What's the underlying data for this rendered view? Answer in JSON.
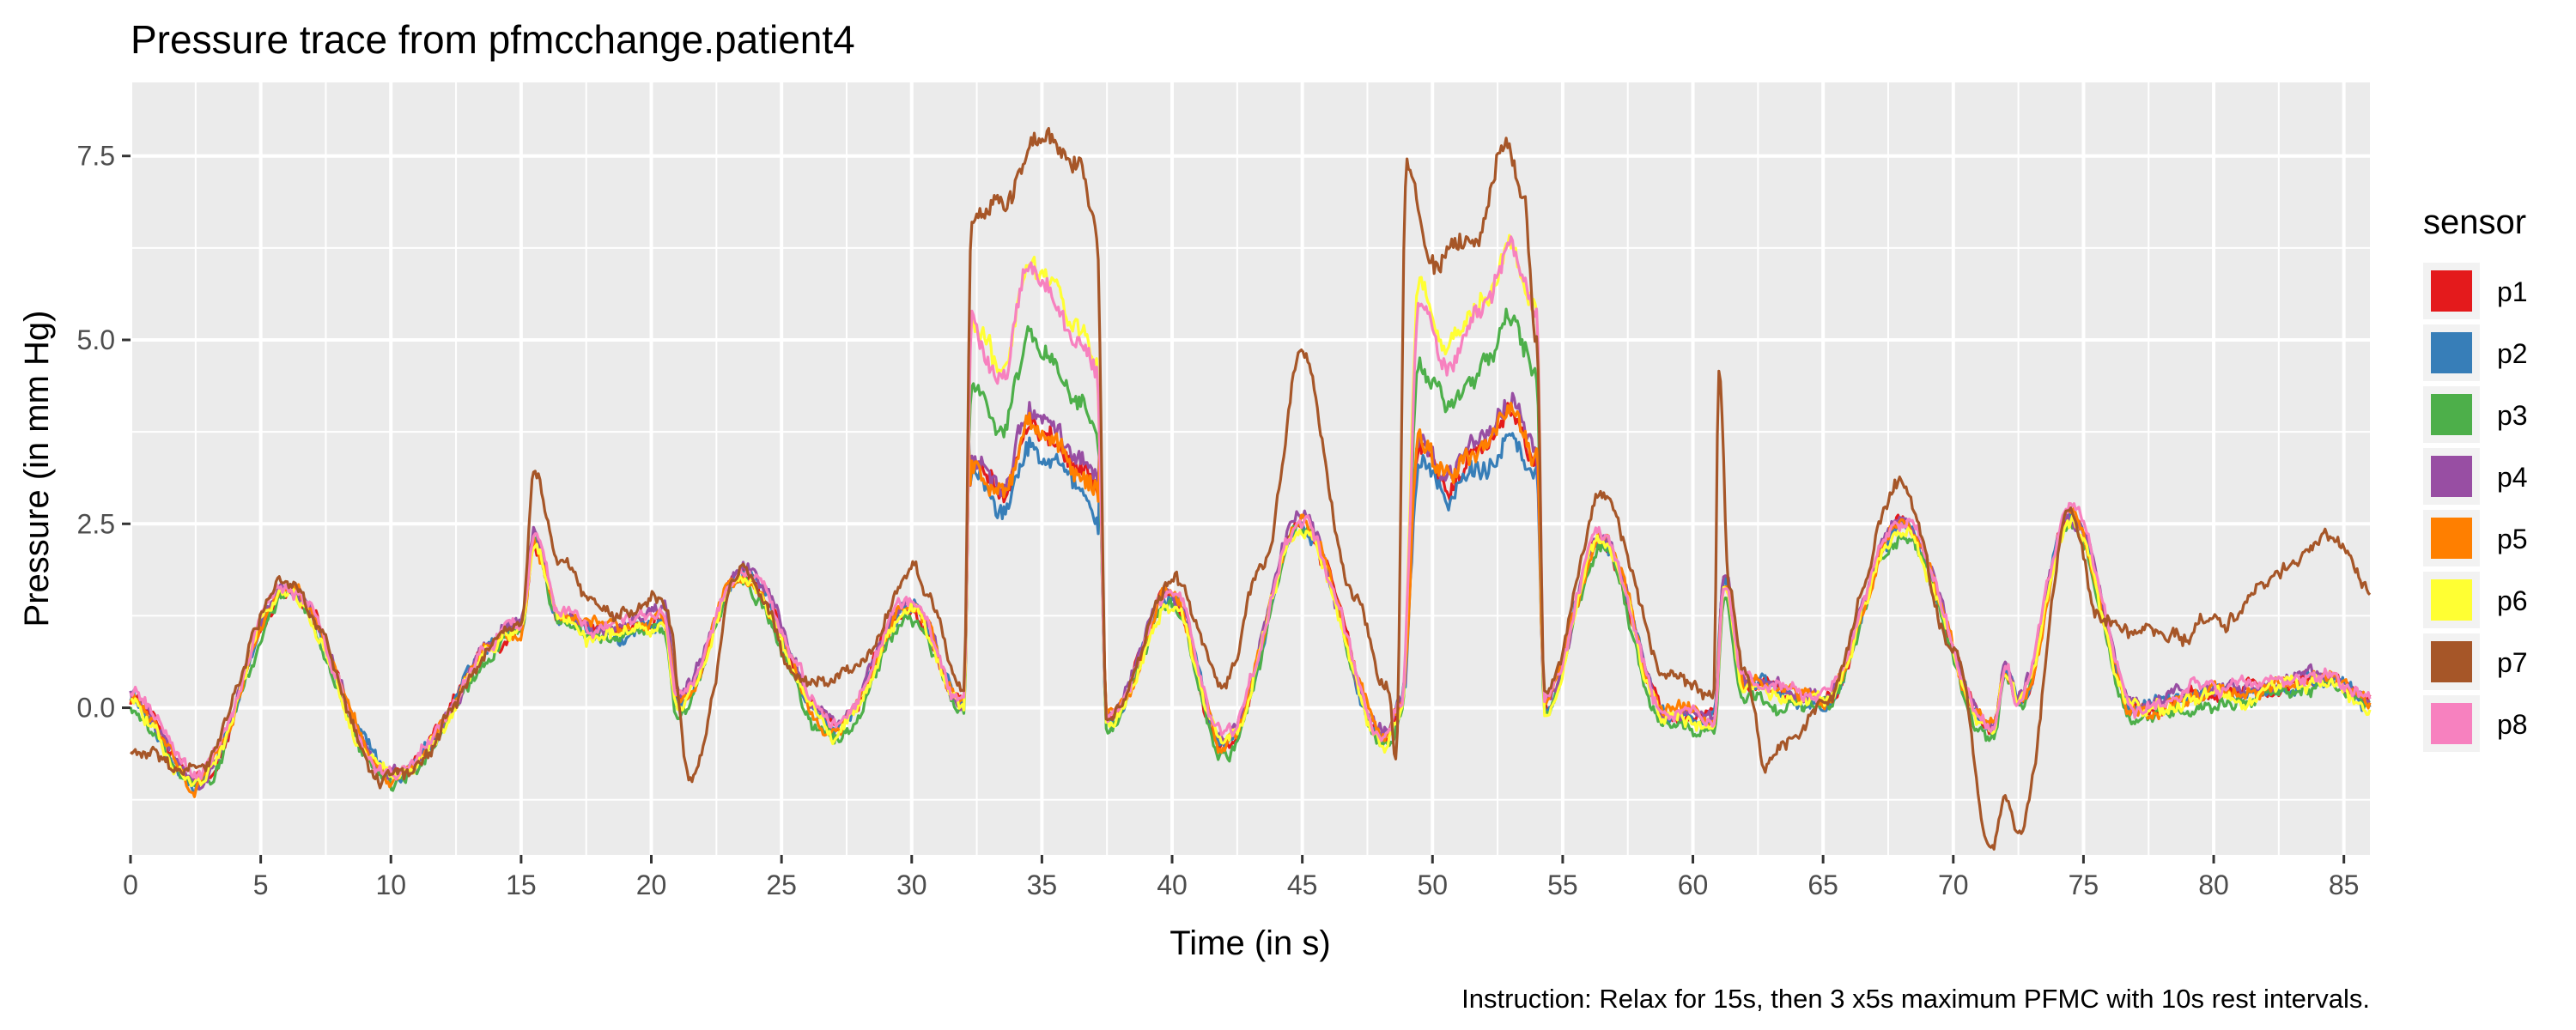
{
  "chart_data": {
    "type": "line",
    "title": "Pressure trace from pfmcchange.patient4",
    "xlabel": "Time (in s)",
    "ylabel": "Pressure (in mm Hg)",
    "caption": "Instruction: Relax for 15s, then 3 x5s maximum PFMC with 10s rest intervals.",
    "xlim": [
      0,
      86
    ],
    "ylim": [
      -2.0,
      8.5
    ],
    "x_ticks": [
      0,
      5,
      10,
      15,
      20,
      25,
      30,
      35,
      40,
      45,
      50,
      55,
      60,
      65,
      70,
      75,
      80,
      85
    ],
    "y_ticks": [
      0.0,
      2.5,
      5.0,
      7.5
    ],
    "y_tick_labels": [
      "0.0",
      "2.5",
      "5.0",
      "7.5"
    ],
    "grid": true,
    "legend": {
      "title": "sensor",
      "position": "right"
    },
    "base_x": [
      0,
      2.5,
      6,
      10,
      15,
      15.5,
      16.5,
      18,
      20.5,
      21,
      23.5,
      27,
      30,
      32,
      32.3,
      33.5,
      34.5,
      35.2,
      36.5,
      37.1,
      37.5,
      40,
      42,
      45,
      48.2,
      48.8,
      49.5,
      50.5,
      52,
      53,
      54,
      54.3,
      56.5,
      59,
      60.8,
      61.2,
      62,
      65,
      68,
      71.5,
      72,
      72.5,
      74.5,
      77,
      80,
      84.5,
      86
    ],
    "base_y": [
      0.1,
      -1.0,
      1.6,
      -0.9,
      1.1,
      2.3,
      1.2,
      1.0,
      1.2,
      0.1,
      1.8,
      -0.3,
      1.4,
      0.0,
      5.2,
      4.5,
      6.0,
      5.7,
      5.0,
      4.5,
      -0.2,
      1.5,
      -0.5,
      2.5,
      -0.4,
      0.0,
      5.6,
      4.8,
      5.5,
      6.2,
      5.3,
      0.0,
      2.3,
      -0.1,
      -0.2,
      1.7,
      0.3,
      0.1,
      2.5,
      -0.3,
      0.5,
      0.1,
      2.6,
      0.0,
      0.2,
      0.4,
      0.1
    ],
    "series": [
      {
        "name": "p1",
        "color": "#E41A1C",
        "offset": 0.0,
        "scale": 0.64,
        "offset2": 0.0,
        "seed": 1
      },
      {
        "name": "p2",
        "color": "#377EB8",
        "offset": 0.0,
        "scale": 0.62,
        "offset2": -0.1,
        "seed": 2
      },
      {
        "name": "p3",
        "color": "#4DAF4A",
        "offset": -0.12,
        "scale": 0.85,
        "offset2": 0.0,
        "seed": 3
      },
      {
        "name": "p4",
        "color": "#984EA3",
        "offset": 0.05,
        "scale": 0.66,
        "offset2": 0.05,
        "seed": 4
      },
      {
        "name": "p5",
        "color": "#FF7F00",
        "offset": 0.0,
        "scale": 0.65,
        "offset2": 0.0,
        "seed": 5
      },
      {
        "name": "p6",
        "color": "#FFFF33",
        "offset": -0.05,
        "scale": 1.02,
        "offset2": 0.0,
        "seed": 6
      },
      {
        "name": "p8",
        "color": "#F781BF",
        "offset": 0.05,
        "scale": 1.0,
        "offset2": 0.0,
        "seed": 8
      },
      {
        "name": "p7",
        "color": "#A65628",
        "seed": 7,
        "x": [
          0,
          2.5,
          6,
          10,
          15,
          15.5,
          16.5,
          18,
          20.5,
          21.5,
          23.5,
          26,
          28,
          30,
          32,
          32.3,
          33.5,
          35,
          36.5,
          37.1,
          37.5,
          40,
          42,
          43.5,
          45,
          47,
          48.3,
          48.6,
          49,
          50,
          51.5,
          52.8,
          53.5,
          54,
          54.3,
          56.5,
          59,
          60.8,
          61.0,
          61.4,
          62,
          62.8,
          65,
          68,
          70,
          71.5,
          72,
          72.5,
          74.5,
          75.5,
          77,
          78.5,
          80,
          84.5,
          86
        ],
        "y": [
          -0.6,
          -0.9,
          1.7,
          -1.0,
          1.2,
          3.3,
          2.0,
          1.3,
          1.5,
          -0.9,
          1.9,
          0.3,
          0.6,
          1.9,
          0.3,
          6.7,
          6.8,
          7.8,
          7.3,
          6.4,
          -0.2,
          1.7,
          0.5,
          2.0,
          4.8,
          1.5,
          0.3,
          -0.6,
          7.5,
          6.1,
          6.3,
          7.7,
          6.9,
          5.0,
          0.2,
          2.8,
          0.5,
          0.3,
          4.6,
          1.6,
          0.5,
          -0.8,
          0.0,
          3.1,
          0.8,
          -1.9,
          -1.3,
          -1.8,
          2.6,
          1.3,
          1.0,
          1.0,
          1.2,
          2.3,
          1.7
        ]
      }
    ]
  }
}
